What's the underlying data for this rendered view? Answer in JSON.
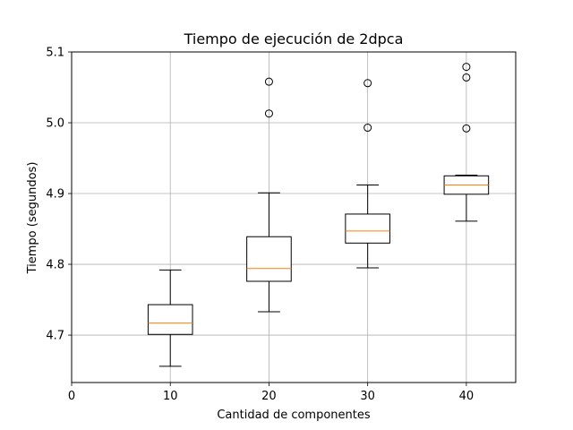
{
  "chart_data": {
    "type": "boxplot",
    "title": "Tiempo de ejecución de 2dpca",
    "xlabel": "Cantidad de componentes",
    "ylabel": "Tiempo (segundos)",
    "xlim": [
      0,
      45
    ],
    "ylim": [
      4.633,
      5.1
    ],
    "xticks": [
      {
        "value": 0,
        "label": "0"
      },
      {
        "value": 10,
        "label": "10"
      },
      {
        "value": 20,
        "label": "20"
      },
      {
        "value": 30,
        "label": "30"
      },
      {
        "value": 40,
        "label": "40"
      }
    ],
    "yticks": [
      {
        "value": 4.7,
        "label": "4.7"
      },
      {
        "value": 4.8,
        "label": "4.8"
      },
      {
        "value": 4.9,
        "label": "4.9"
      },
      {
        "value": 5.0,
        "label": "5.0"
      },
      {
        "value": 5.1,
        "label": "5.1"
      }
    ],
    "grid": true,
    "box_width": 4.5,
    "boxes": [
      {
        "x": 10,
        "whisker_low": 4.656,
        "q1": 4.701,
        "median": 4.717,
        "q3": 4.743,
        "whisker_high": 4.792,
        "outliers": []
      },
      {
        "x": 20,
        "whisker_low": 4.733,
        "q1": 4.776,
        "median": 4.794,
        "q3": 4.839,
        "whisker_high": 4.901,
        "outliers": [
          5.013,
          5.058
        ]
      },
      {
        "x": 30,
        "whisker_low": 4.795,
        "q1": 4.83,
        "median": 4.847,
        "q3": 4.871,
        "whisker_high": 4.912,
        "outliers": [
          4.993,
          5.056
        ]
      },
      {
        "x": 40,
        "whisker_low": 4.861,
        "q1": 4.899,
        "median": 4.912,
        "q3": 4.925,
        "whisker_high": 4.926,
        "outliers": [
          4.992,
          5.064,
          5.079
        ]
      }
    ],
    "colors": {
      "box": "#000000",
      "median": "#ff7f0e",
      "grid": "#b0b0b0",
      "axes": "#000000"
    }
  }
}
